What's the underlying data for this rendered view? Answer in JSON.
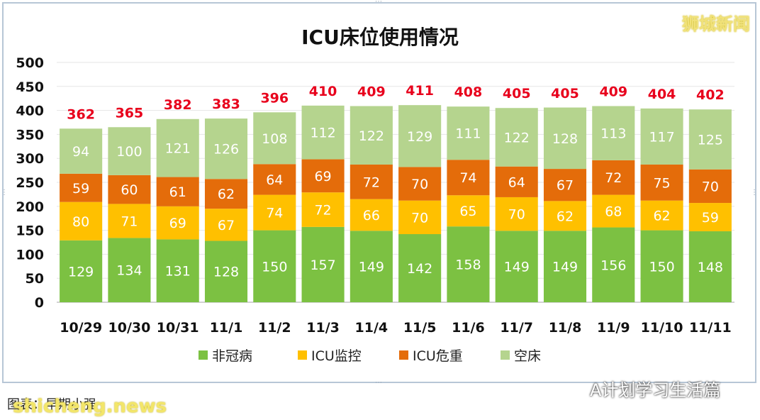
{
  "watermark": "狮城新闻",
  "caption": "图表：早期小强",
  "site": "shicheng.news",
  "account": "A计划学习生活篇",
  "chart_data": {
    "type": "stacked-bar",
    "title": "ICU床位使用情况",
    "xlabel": "",
    "ylabel": "",
    "ylim": [
      0,
      500
    ],
    "yticks": [
      0,
      50,
      100,
      150,
      200,
      250,
      300,
      350,
      400,
      450,
      500
    ],
    "grid": true,
    "legend_position": "bottom",
    "categories": [
      "10/29",
      "10/30",
      "10/31",
      "11/1",
      "11/2",
      "11/3",
      "11/4",
      "11/5",
      "11/6",
      "11/7",
      "11/8",
      "11/9",
      "11/10",
      "11/11"
    ],
    "series": [
      {
        "name": "非冠病",
        "color": "#7cc142",
        "values": [
          129,
          134,
          131,
          128,
          150,
          157,
          149,
          142,
          158,
          149,
          149,
          156,
          150,
          148
        ]
      },
      {
        "name": "ICU监控",
        "color": "#ffc000",
        "values": [
          80,
          71,
          69,
          67,
          74,
          72,
          66,
          70,
          65,
          70,
          62,
          68,
          62,
          59
        ]
      },
      {
        "name": "ICU危重",
        "color": "#e46c0a",
        "values": [
          59,
          60,
          61,
          62,
          64,
          69,
          72,
          70,
          74,
          64,
          67,
          72,
          75,
          70
        ]
      },
      {
        "name": "空床",
        "color": "#b5d48e",
        "values": [
          94,
          100,
          121,
          126,
          108,
          112,
          122,
          129,
          111,
          122,
          128,
          113,
          117,
          125
        ]
      }
    ],
    "totals": [
      362,
      365,
      382,
      383,
      396,
      410,
      409,
      411,
      408,
      405,
      405,
      409,
      404,
      402
    ],
    "total_label_color": "#e8001c"
  }
}
